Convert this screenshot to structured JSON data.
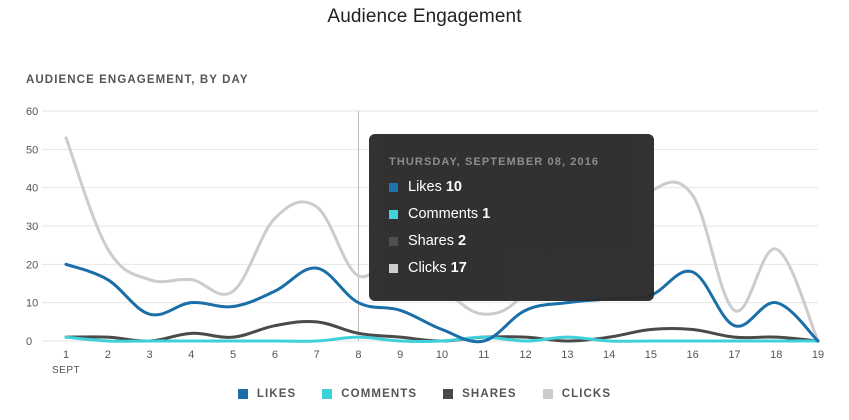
{
  "page": {
    "title": "Audience Engagement"
  },
  "chart_data": {
    "type": "line",
    "title": "AUDIENCE ENGAGEMENT, BY DAY",
    "xlabel": "",
    "ylabel": "",
    "x": [
      1,
      2,
      3,
      4,
      5,
      6,
      7,
      8,
      9,
      10,
      11,
      12,
      13,
      14,
      15,
      16,
      17,
      18,
      19
    ],
    "x_tick_labels": [
      "1",
      "2",
      "3",
      "4",
      "5",
      "6",
      "7",
      "8",
      "9",
      "10",
      "11",
      "12",
      "13",
      "14",
      "15",
      "16",
      "17",
      "18",
      "19"
    ],
    "x_sub_label": "SEPT",
    "ylim": [
      0,
      60
    ],
    "y_ticks": [
      0,
      10,
      20,
      30,
      40,
      50,
      60
    ],
    "grid": true,
    "legend_position": "bottom",
    "series": [
      {
        "name": "Likes",
        "legend_label": "LIKES",
        "color": "#1a6fa8",
        "values": [
          20,
          16,
          7,
          10,
          9,
          13,
          19,
          10,
          8,
          3,
          0,
          8,
          10,
          11,
          12,
          18,
          4,
          10,
          0
        ]
      },
      {
        "name": "Comments",
        "legend_label": "COMMENTS",
        "color": "#3ed1dc",
        "values": [
          1,
          0,
          0,
          0,
          0,
          0,
          0,
          1,
          0,
          0,
          1,
          0,
          1,
          0,
          0,
          0,
          0,
          0,
          0
        ]
      },
      {
        "name": "Shares",
        "legend_label": "SHARES",
        "color": "#4a4a4a",
        "values": [
          1,
          1,
          0,
          2,
          1,
          4,
          5,
          2,
          1,
          0,
          1,
          1,
          0,
          1,
          3,
          3,
          1,
          1,
          0
        ]
      },
      {
        "name": "Clicks",
        "legend_label": "CLICKS",
        "color": "#cccccc",
        "values": [
          53,
          24,
          16,
          16,
          13,
          32,
          35,
          17,
          24,
          14,
          7,
          13,
          34,
          25,
          39,
          38,
          8,
          24,
          0
        ]
      }
    ],
    "hover_x": 8,
    "tooltip": {
      "date": "THURSDAY, SEPTEMBER 08, 2016",
      "rows": [
        {
          "label": "Likes",
          "value": "10",
          "color": "#1a6fa8"
        },
        {
          "label": "Comments",
          "value": "1",
          "color": "#3ed1dc"
        },
        {
          "label": "Shares",
          "value": "2",
          "color": "#4a4a4a"
        },
        {
          "label": "Clicks",
          "value": "17",
          "color": "#cccccc"
        }
      ]
    }
  }
}
